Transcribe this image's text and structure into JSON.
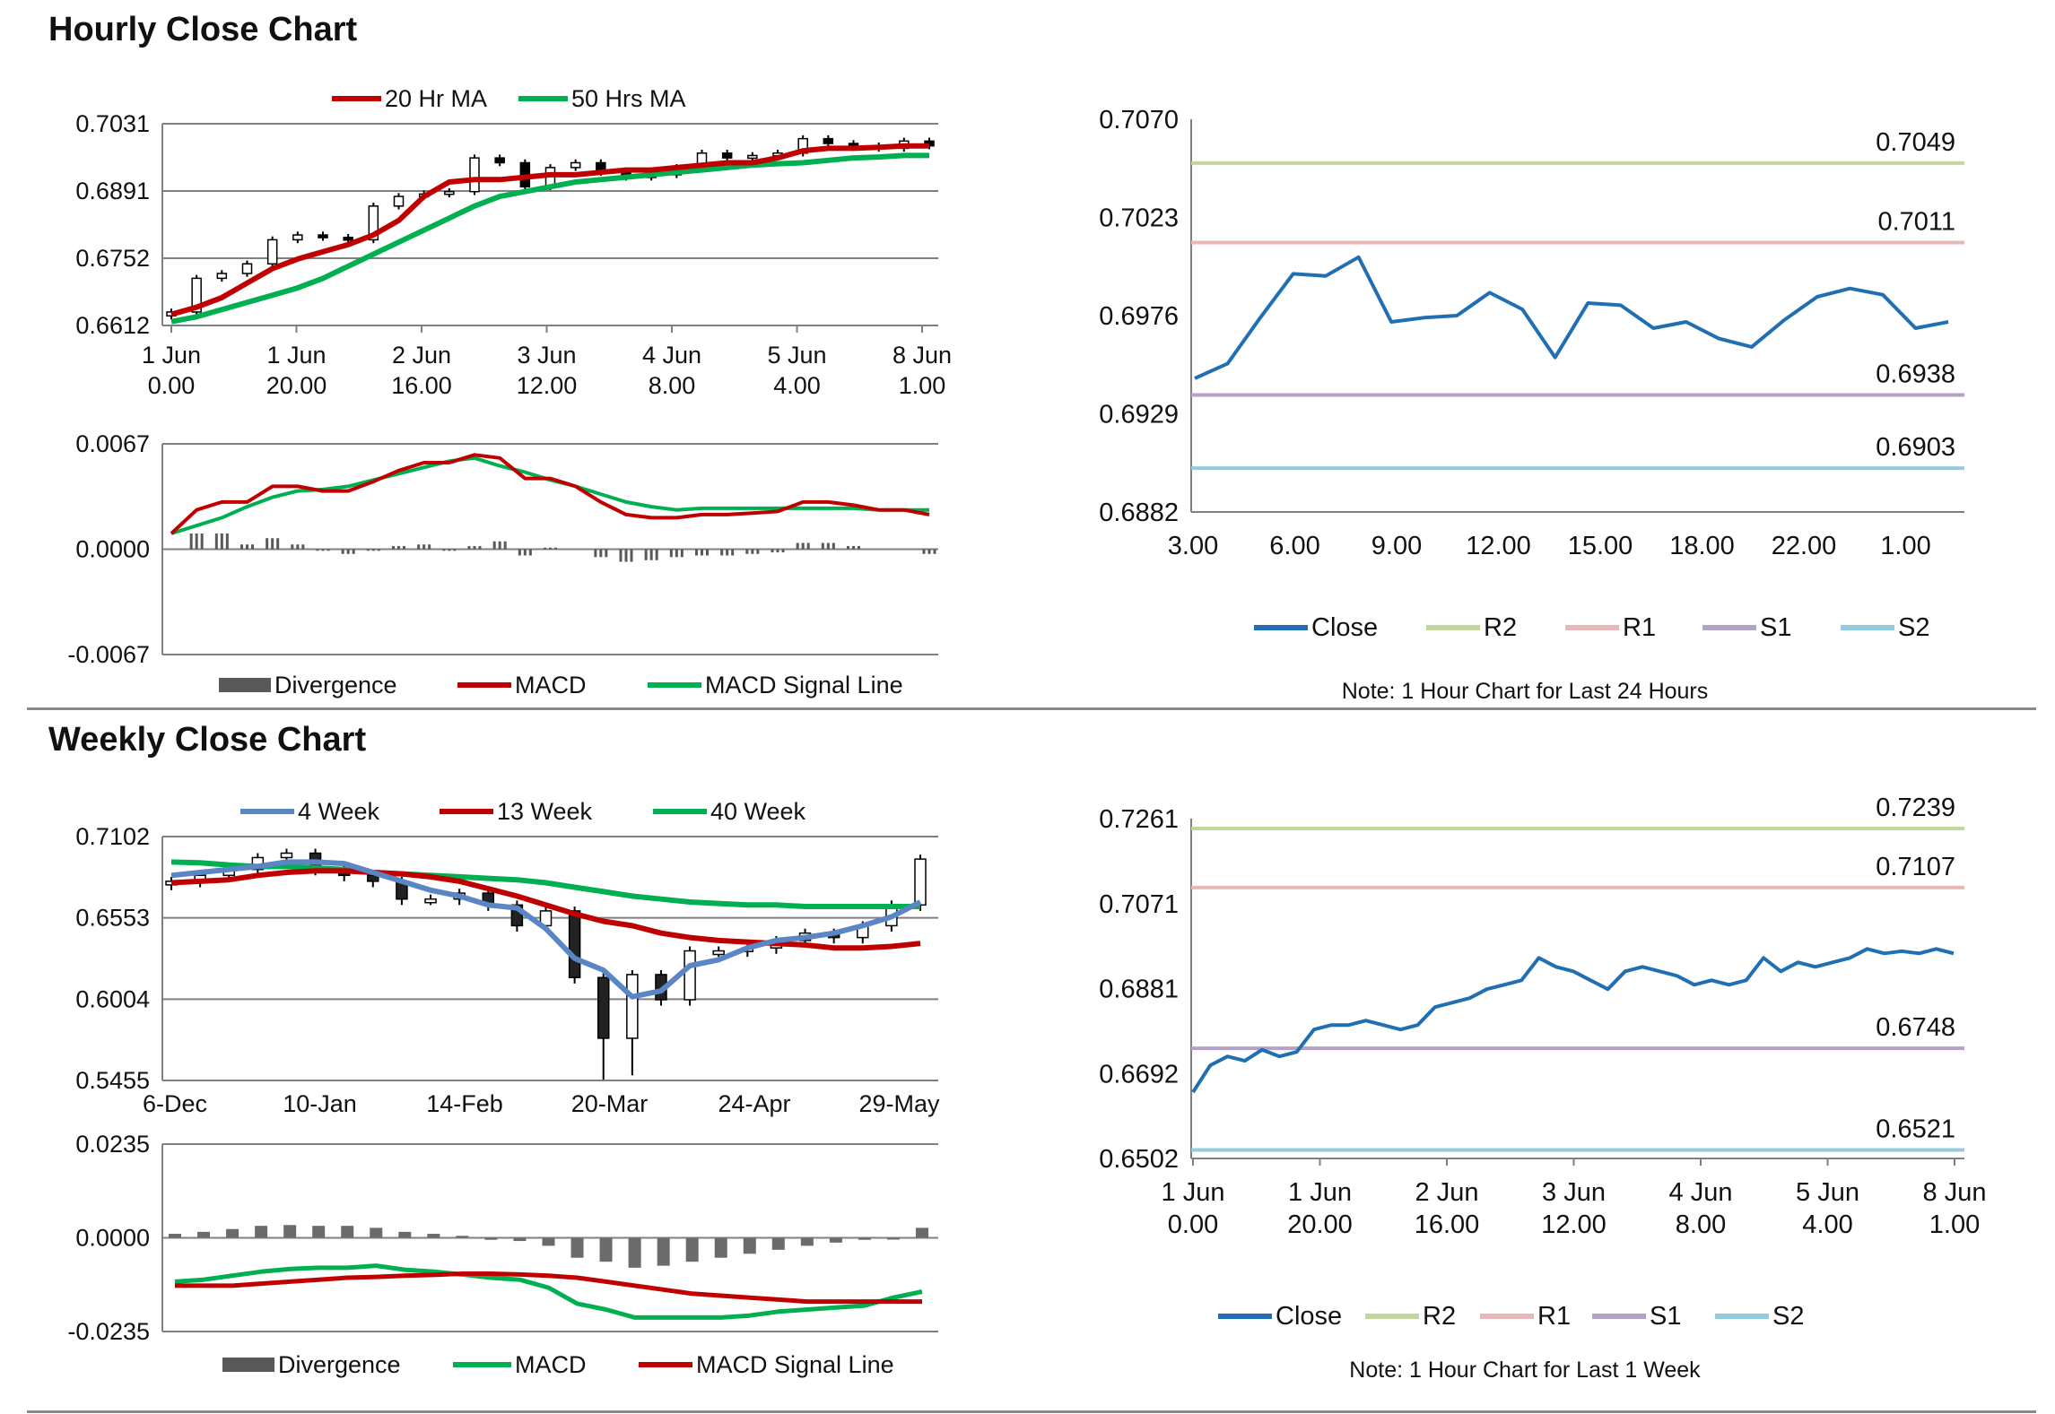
{
  "sections": {
    "hourly_title": "Hourly Close Chart",
    "weekly_title": "Weekly Close Chart"
  },
  "colors": {
    "ma20": "#c00000",
    "ma50": "#00b050",
    "close": "#1f6fb2",
    "r2": "#c3d69b",
    "r1": "#e6b9b8",
    "s1": "#b3a2c7",
    "s2": "#93cddd",
    "week4": "#5a86c5",
    "divergence": "#595959",
    "grid": "#808080"
  },
  "chart_data": [
    {
      "id": "hourly_price",
      "type": "candlestick",
      "legend": [
        "20 Hr MA",
        "50 Hrs MA"
      ],
      "ylim": [
        0.6612,
        0.7031
      ],
      "yticks": [
        "0.7031",
        "0.6891",
        "0.6752",
        "0.6612"
      ],
      "xticks": [
        [
          "1 Jun",
          "0.00"
        ],
        [
          "1 Jun",
          "20.00"
        ],
        [
          "2 Jun",
          "16.00"
        ],
        [
          "3 Jun",
          "12.00"
        ],
        [
          "4 Jun",
          "8.00"
        ],
        [
          "5 Jun",
          "4.00"
        ],
        [
          "8 Jun",
          "1.00"
        ]
      ],
      "x": [
        0,
        4,
        8,
        12,
        16,
        20,
        24,
        28,
        32,
        36,
        40,
        44,
        48,
        52,
        56,
        60,
        64,
        68,
        72,
        76,
        80,
        84,
        88,
        92,
        96,
        100,
        104,
        108,
        112,
        116,
        120
      ],
      "close": [
        0.664,
        0.671,
        0.672,
        0.674,
        0.679,
        0.68,
        0.6795,
        0.679,
        0.686,
        0.688,
        0.6885,
        0.689,
        0.696,
        0.695,
        0.69,
        0.694,
        0.695,
        0.693,
        0.692,
        0.6925,
        0.694,
        0.697,
        0.696,
        0.6965,
        0.697,
        0.7,
        0.699,
        0.6985,
        0.698,
        0.6995,
        0.6985
      ],
      "ma20": [
        0.6635,
        0.665,
        0.667,
        0.67,
        0.673,
        0.675,
        0.6765,
        0.678,
        0.68,
        0.683,
        0.688,
        0.691,
        0.6915,
        0.6915,
        0.692,
        0.6925,
        0.6925,
        0.693,
        0.6935,
        0.6935,
        0.694,
        0.6945,
        0.695,
        0.695,
        0.696,
        0.6975,
        0.698,
        0.698,
        0.6982,
        0.6985,
        0.6985
      ],
      "ma50": [
        0.662,
        0.663,
        0.6645,
        0.666,
        0.6675,
        0.669,
        0.671,
        0.6735,
        0.676,
        0.6785,
        0.681,
        0.6835,
        0.686,
        0.688,
        0.689,
        0.69,
        0.691,
        0.6915,
        0.692,
        0.6925,
        0.693,
        0.6935,
        0.694,
        0.6945,
        0.6948,
        0.695,
        0.6955,
        0.696,
        0.6962,
        0.6965,
        0.6965
      ]
    },
    {
      "id": "hourly_macd",
      "type": "line+bar",
      "legend": [
        "Divergence",
        "MACD",
        "MACD Signal Line"
      ],
      "ylim": [
        -0.0067,
        0.0067
      ],
      "yticks": [
        "0.0067",
        "0.0000",
        "-0.0067"
      ],
      "x": [
        0,
        4,
        8,
        12,
        16,
        20,
        24,
        28,
        32,
        36,
        40,
        44,
        48,
        52,
        56,
        60,
        64,
        68,
        72,
        76,
        80,
        84,
        88,
        92,
        96,
        100,
        104,
        108,
        112,
        116,
        120
      ],
      "macd": [
        0.001,
        0.0025,
        0.003,
        0.003,
        0.004,
        0.004,
        0.0037,
        0.0037,
        0.0043,
        0.005,
        0.0055,
        0.0055,
        0.006,
        0.0058,
        0.0045,
        0.0045,
        0.004,
        0.003,
        0.0022,
        0.002,
        0.002,
        0.0022,
        0.0022,
        0.0023,
        0.0024,
        0.003,
        0.003,
        0.0028,
        0.0025,
        0.0025,
        0.0022
      ],
      "signal": [
        0.001,
        0.0015,
        0.002,
        0.0027,
        0.0033,
        0.0037,
        0.0038,
        0.004,
        0.0044,
        0.0048,
        0.0052,
        0.0056,
        0.0058,
        0.0053,
        0.0049,
        0.0044,
        0.004,
        0.0035,
        0.003,
        0.0027,
        0.0025,
        0.0026,
        0.0026,
        0.0026,
        0.0026,
        0.0026,
        0.0026,
        0.0026,
        0.0025,
        0.0025,
        0.0025
      ],
      "divergence": [
        0.0,
        0.001,
        0.001,
        0.0003,
        0.0007,
        0.0003,
        -0.0001,
        -0.0003,
        -0.0001,
        0.0002,
        0.0003,
        -0.0001,
        0.0002,
        0.0005,
        -0.0004,
        0.0001,
        0.0,
        -0.0005,
        -0.0008,
        -0.0007,
        -0.0005,
        -0.0004,
        -0.0004,
        -0.0003,
        -0.0002,
        0.0004,
        0.0004,
        0.0002,
        0.0,
        0.0,
        -0.0003
      ]
    },
    {
      "id": "hourly_24h",
      "type": "line",
      "legend": [
        "Close",
        "R2",
        "R1",
        "S1",
        "S2"
      ],
      "note": "Note: 1 Hour Chart for Last 24 Hours",
      "ylim": [
        0.6882,
        0.707
      ],
      "yticks": [
        "0.7070",
        "0.7023",
        "0.6976",
        "0.6929",
        "0.6882"
      ],
      "xticks": [
        "3.00",
        "6.00",
        "9.00",
        "12.00",
        "15.00",
        "18.00",
        "22.00",
        "1.00"
      ],
      "levels": {
        "R2": "0.7049",
        "R1": "0.7011",
        "S1": "0.6938",
        "S2": "0.6903"
      },
      "close": [
        0.6946,
        0.6953,
        0.6975,
        0.6996,
        0.6995,
        0.7004,
        0.6973,
        0.6975,
        0.6976,
        0.6987,
        0.6979,
        0.6956,
        0.6982,
        0.6981,
        0.697,
        0.6973,
        0.6965,
        0.6961,
        0.6974,
        0.6985,
        0.6989,
        0.6986,
        0.697,
        0.6973
      ]
    },
    {
      "id": "weekly_price",
      "type": "candlestick",
      "legend": [
        "4 Week",
        "13 Week",
        "40 Week"
      ],
      "ylim": [
        0.5455,
        0.7102
      ],
      "yticks": [
        "0.7102",
        "0.6553",
        "0.6004",
        "0.5455"
      ],
      "xticks": [
        "6-Dec",
        "10-Jan",
        "14-Feb",
        "20-Mar",
        "24-Apr",
        "29-May"
      ],
      "close": [
        0.68,
        0.684,
        0.688,
        0.696,
        0.699,
        0.688,
        0.684,
        0.68,
        0.668,
        0.668,
        0.672,
        0.664,
        0.65,
        0.66,
        0.615,
        0.574,
        0.617,
        0.6,
        0.633,
        0.633,
        0.635,
        0.64,
        0.645,
        0.642,
        0.65,
        0.664,
        0.695
      ],
      "ma4": [
        0.684,
        0.686,
        0.688,
        0.69,
        0.693,
        0.693,
        0.692,
        0.686,
        0.68,
        0.674,
        0.67,
        0.664,
        0.662,
        0.648,
        0.628,
        0.62,
        0.602,
        0.606,
        0.623,
        0.627,
        0.635,
        0.64,
        0.642,
        0.645,
        0.65,
        0.656,
        0.666
      ],
      "ma13": [
        0.679,
        0.68,
        0.681,
        0.684,
        0.686,
        0.687,
        0.687,
        0.686,
        0.685,
        0.683,
        0.68,
        0.675,
        0.67,
        0.664,
        0.658,
        0.653,
        0.65,
        0.645,
        0.642,
        0.64,
        0.639,
        0.638,
        0.637,
        0.635,
        0.635,
        0.636,
        0.638
      ],
      "ma40": [
        0.693,
        0.6925,
        0.691,
        0.69,
        0.69,
        0.689,
        0.688,
        0.686,
        0.685,
        0.684,
        0.683,
        0.682,
        0.681,
        0.679,
        0.676,
        0.673,
        0.67,
        0.668,
        0.666,
        0.665,
        0.664,
        0.664,
        0.663,
        0.663,
        0.663,
        0.663,
        0.663
      ]
    },
    {
      "id": "weekly_macd",
      "type": "line+bar",
      "legend": [
        "Divergence",
        "MACD",
        "MACD Signal Line"
      ],
      "ylim": [
        -0.0235,
        0.0235
      ],
      "yticks": [
        "0.0235",
        "0.0000",
        "-0.0235"
      ],
      "macd": [
        -0.011,
        -0.0105,
        -0.0095,
        -0.0085,
        -0.0078,
        -0.0075,
        -0.0075,
        -0.007,
        -0.008,
        -0.0085,
        -0.0092,
        -0.01,
        -0.0105,
        -0.0125,
        -0.0165,
        -0.018,
        -0.02,
        -0.02,
        -0.02,
        -0.02,
        -0.0195,
        -0.0185,
        -0.018,
        -0.0175,
        -0.017,
        -0.015,
        -0.0135
      ],
      "signal": [
        -0.012,
        -0.012,
        -0.012,
        -0.0115,
        -0.011,
        -0.0105,
        -0.01,
        -0.0098,
        -0.0095,
        -0.0093,
        -0.009,
        -0.009,
        -0.0092,
        -0.0095,
        -0.01,
        -0.011,
        -0.012,
        -0.013,
        -0.014,
        -0.0145,
        -0.015,
        -0.0155,
        -0.016,
        -0.016,
        -0.016,
        -0.016,
        -0.016
      ],
      "divergence": [
        0.001,
        0.0015,
        0.0022,
        0.003,
        0.0032,
        0.003,
        0.003,
        0.0025,
        0.0015,
        0.001,
        0.0005,
        -0.0005,
        -0.0008,
        -0.002,
        -0.005,
        -0.006,
        -0.0075,
        -0.007,
        -0.006,
        -0.005,
        -0.004,
        -0.003,
        -0.002,
        -0.0012,
        -0.0005,
        0.0,
        0.0025
      ]
    },
    {
      "id": "hourly_week",
      "type": "line",
      "legend": [
        "Close",
        "R2",
        "R1",
        "S1",
        "S2"
      ],
      "note": "Note: 1 Hour Chart for Last 1 Week",
      "ylim": [
        0.6502,
        0.7261
      ],
      "yticks": [
        "0.7261",
        "0.7071",
        "0.6881",
        "0.6692",
        "0.6502"
      ],
      "xticks": [
        [
          "1 Jun",
          "0.00"
        ],
        [
          "1 Jun",
          "20.00"
        ],
        [
          "2 Jun",
          "16.00"
        ],
        [
          "3 Jun",
          "12.00"
        ],
        [
          "4 Jun",
          "8.00"
        ],
        [
          "5 Jun",
          "4.00"
        ],
        [
          "8 Jun",
          "1.00"
        ]
      ],
      "levels": {
        "R2": "0.7239",
        "R1": "0.7107",
        "S1": "0.6748",
        "S2": "0.6521"
      },
      "close": [
        0.665,
        0.671,
        0.673,
        0.672,
        0.6745,
        0.673,
        0.674,
        0.679,
        0.68,
        0.68,
        0.681,
        0.68,
        0.679,
        0.68,
        0.684,
        0.685,
        0.686,
        0.688,
        0.689,
        0.69,
        0.695,
        0.693,
        0.692,
        0.69,
        0.688,
        0.692,
        0.693,
        0.692,
        0.691,
        0.689,
        0.69,
        0.689,
        0.69,
        0.695,
        0.692,
        0.694,
        0.693,
        0.694,
        0.695,
        0.697,
        0.696,
        0.6965,
        0.696,
        0.697,
        0.696
      ]
    }
  ]
}
